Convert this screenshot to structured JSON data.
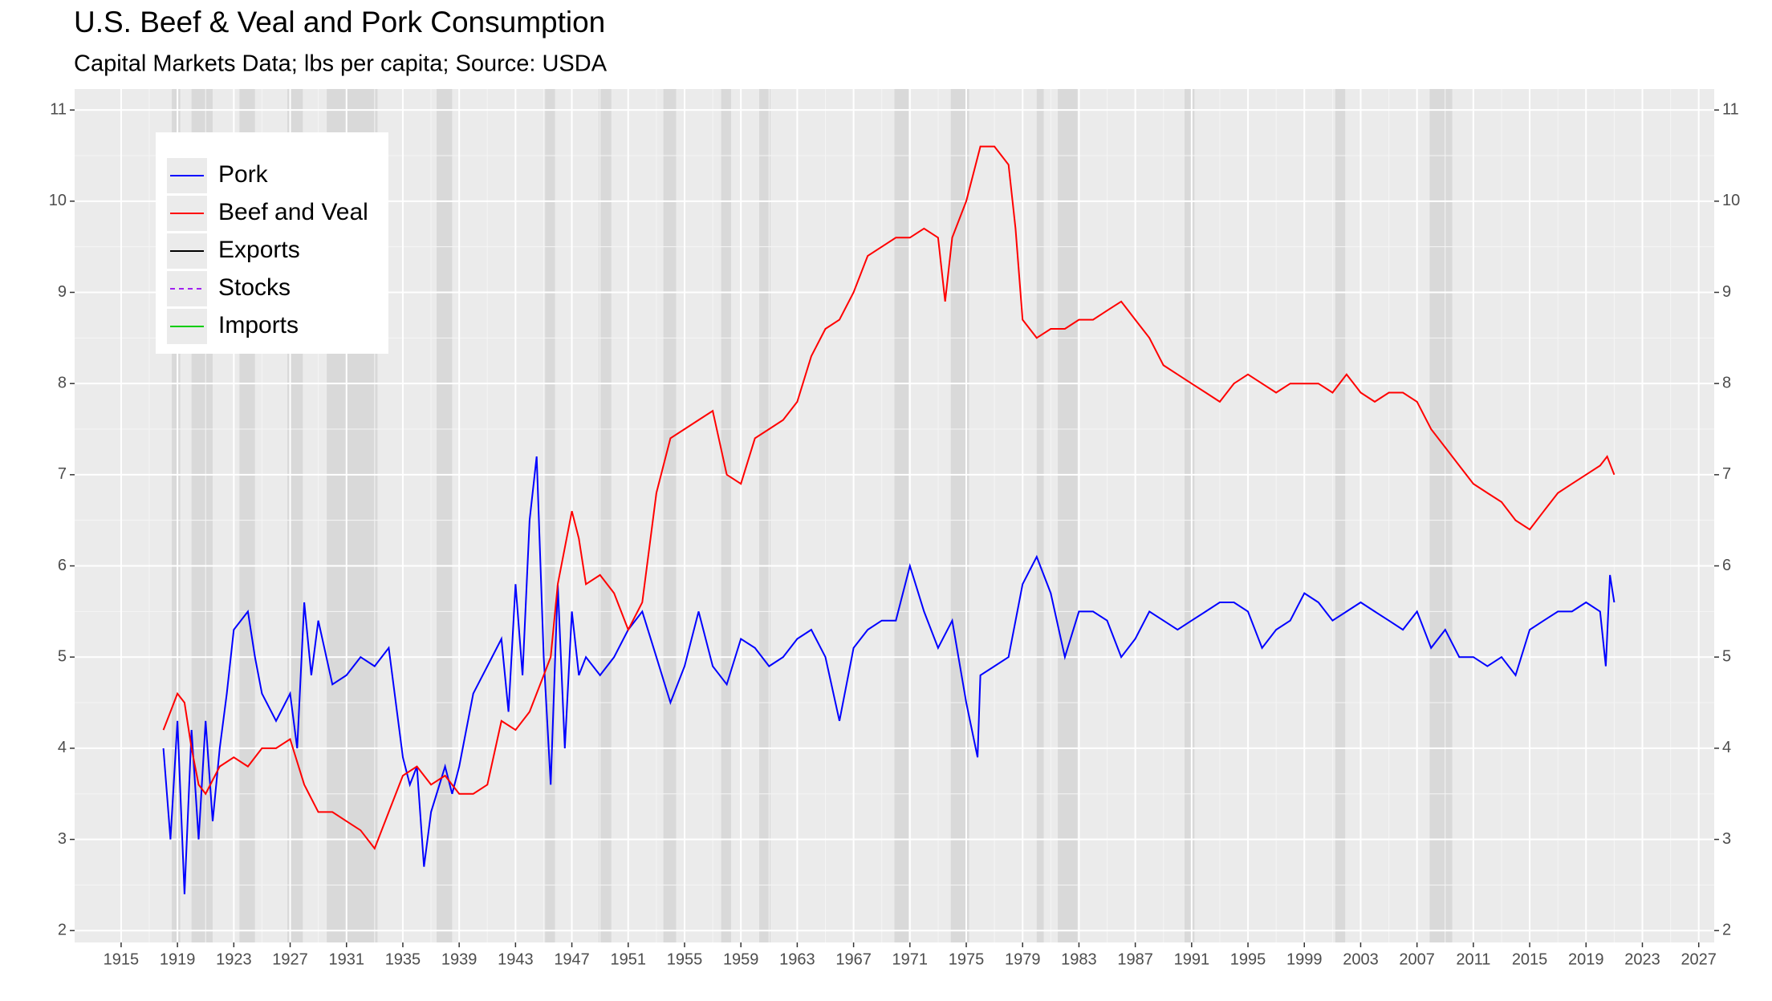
{
  "chart_data": {
    "type": "line",
    "title": "U.S. Beef & Veal and Pork Consumption",
    "subtitle": "Capital Markets Data; lbs per capita; Source: USDA",
    "xlim": [
      1911.7,
      2028.1
    ],
    "xticks": [
      1915,
      1919,
      1923,
      1927,
      1931,
      1935,
      1939,
      1943,
      1947,
      1951,
      1955,
      1959,
      1963,
      1967,
      1971,
      1975,
      1979,
      1983,
      1987,
      1991,
      1995,
      1999,
      2003,
      2007,
      2011,
      2015,
      2019,
      2023,
      2027
    ],
    "ylim": [
      1.87,
      11.23
    ],
    "yticks": [
      2,
      3,
      4,
      5,
      6,
      7,
      8,
      9,
      10,
      11
    ],
    "grid": true,
    "legend": "top-left",
    "recessions": [
      [
        1918.6,
        1919.2
      ],
      [
        1920.0,
        1921.5
      ],
      [
        1923.4,
        1924.5
      ],
      [
        1926.8,
        1927.9
      ],
      [
        1929.6,
        1933.2
      ],
      [
        1937.4,
        1938.5
      ],
      [
        1945.1,
        1945.8
      ],
      [
        1948.9,
        1949.8
      ],
      [
        1953.5,
        1954.4
      ],
      [
        1957.6,
        1958.3
      ],
      [
        1960.3,
        1961.1
      ],
      [
        1969.9,
        1970.9
      ],
      [
        1973.9,
        1975.2
      ],
      [
        1980.0,
        1980.5
      ],
      [
        1981.5,
        1982.9
      ],
      [
        1990.5,
        1991.2
      ],
      [
        2001.2,
        2001.9
      ],
      [
        2007.9,
        2009.5
      ]
    ],
    "series": [
      {
        "name": "Pork",
        "color": "#0000ff",
        "dash": "solid",
        "x": [
          1918,
          1918.5,
          1919,
          1919.5,
          1920,
          1920.5,
          1921,
          1921.5,
          1922,
          1922.5,
          1923,
          1924,
          1924.5,
          1925,
          1926,
          1927,
          1927.5,
          1928,
          1928.5,
          1929,
          1930,
          1931,
          1932,
          1933,
          1934,
          1935,
          1935.5,
          1936,
          1936.5,
          1937,
          1938,
          1938.5,
          1939,
          1940,
          1941,
          1942,
          1942.5,
          1943,
          1943.5,
          1944,
          1944.5,
          1945,
          1945.5,
          1946,
          1946.5,
          1947,
          1947.5,
          1948,
          1949,
          1950,
          1951,
          1952,
          1953,
          1954,
          1955,
          1956,
          1957,
          1958,
          1959,
          1960,
          1961,
          1962,
          1963,
          1964,
          1965,
          1966,
          1967,
          1968,
          1969,
          1970,
          1971,
          1972,
          1973,
          1974,
          1975,
          1975.8,
          1976,
          1977,
          1978,
          1979,
          1980,
          1981,
          1982,
          1983,
          1984,
          1985,
          1986,
          1987,
          1988,
          1989,
          1990,
          1991,
          1992,
          1993,
          1994,
          1995,
          1996,
          1997,
          1998,
          1999,
          2000,
          2001,
          2002,
          2003,
          2004,
          2005,
          2006,
          2007,
          2008,
          2009,
          2010,
          2011,
          2012,
          2013,
          2014,
          2015,
          2016,
          2017,
          2018,
          2019,
          2020,
          2020.4,
          2020.7,
          2021
        ],
        "values": [
          4.0,
          3.0,
          4.3,
          2.4,
          4.2,
          3.0,
          4.3,
          3.2,
          4.0,
          4.6,
          5.3,
          5.5,
          5.0,
          4.6,
          4.3,
          4.6,
          4.0,
          5.6,
          4.8,
          5.4,
          4.7,
          4.8,
          5.0,
          4.9,
          5.1,
          3.9,
          3.6,
          3.8,
          2.7,
          3.3,
          3.8,
          3.5,
          3.8,
          4.6,
          4.9,
          5.2,
          4.4,
          5.8,
          4.8,
          6.5,
          7.2,
          5.0,
          3.6,
          5.8,
          4.0,
          5.5,
          4.8,
          5.0,
          4.8,
          5.0,
          5.3,
          5.5,
          5.0,
          4.5,
          4.9,
          5.5,
          4.9,
          4.7,
          5.2,
          5.1,
          4.9,
          5.0,
          5.2,
          5.3,
          5.0,
          4.3,
          5.1,
          5.3,
          5.4,
          5.4,
          6.0,
          5.5,
          5.1,
          5.4,
          4.5,
          3.9,
          4.8,
          4.9,
          5.0,
          5.8,
          6.1,
          5.7,
          5.0,
          5.5,
          5.5,
          5.4,
          5.0,
          5.2,
          5.5,
          5.4,
          5.3,
          5.4,
          5.5,
          5.6,
          5.6,
          5.5,
          5.1,
          5.3,
          5.4,
          5.7,
          5.6,
          5.4,
          5.5,
          5.6,
          5.5,
          5.4,
          5.3,
          5.5,
          5.1,
          5.3,
          5.0,
          5.0,
          4.9,
          5.0,
          4.8,
          5.3,
          5.4,
          5.5,
          5.5,
          5.6,
          5.5,
          4.9,
          5.9,
          5.6
        ]
      },
      {
        "name": "Beef and Veal",
        "color": "#ff0000",
        "dash": "solid",
        "x": [
          1918,
          1918.5,
          1919,
          1919.5,
          1920,
          1920.5,
          1921,
          1922,
          1923,
          1924,
          1925,
          1926,
          1927,
          1928,
          1929,
          1930,
          1931,
          1932,
          1933,
          1934,
          1935,
          1936,
          1937,
          1938,
          1939,
          1940,
          1941,
          1942,
          1943,
          1944,
          1945,
          1945.5,
          1946,
          1947,
          1947.5,
          1948,
          1949,
          1950,
          1951,
          1952,
          1953,
          1954,
          1955,
          1956,
          1957,
          1958,
          1959,
          1960,
          1961,
          1962,
          1963,
          1964,
          1965,
          1966,
          1967,
          1968,
          1969,
          1970,
          1971,
          1972,
          1973,
          1973.5,
          1974,
          1975,
          1976,
          1977,
          1978,
          1978.5,
          1979,
          1980,
          1981,
          1982,
          1983,
          1984,
          1985,
          1986,
          1987,
          1988,
          1989,
          1990,
          1991,
          1992,
          1993,
          1994,
          1995,
          1996,
          1997,
          1998,
          1999,
          2000,
          2001,
          2002,
          2003,
          2004,
          2005,
          2006,
          2007,
          2008,
          2009,
          2010,
          2011,
          2012,
          2013,
          2014,
          2015,
          2016,
          2017,
          2018,
          2019,
          2020,
          2020.5,
          2021
        ],
        "values": [
          4.2,
          4.4,
          4.6,
          4.5,
          4.0,
          3.6,
          3.5,
          3.8,
          3.9,
          3.8,
          4.0,
          4.0,
          4.1,
          3.6,
          3.3,
          3.3,
          3.2,
          3.1,
          2.9,
          3.3,
          3.7,
          3.8,
          3.6,
          3.7,
          3.5,
          3.5,
          3.6,
          4.3,
          4.2,
          4.4,
          4.8,
          5.0,
          5.8,
          6.6,
          6.3,
          5.8,
          5.9,
          5.7,
          5.3,
          5.6,
          6.8,
          7.4,
          7.5,
          7.6,
          7.7,
          7.0,
          6.9,
          7.4,
          7.5,
          7.6,
          7.8,
          8.3,
          8.6,
          8.7,
          9.0,
          9.4,
          9.5,
          9.6,
          9.6,
          9.7,
          9.6,
          8.9,
          9.6,
          10.0,
          10.6,
          10.6,
          10.4,
          9.7,
          8.7,
          8.5,
          8.6,
          8.6,
          8.7,
          8.7,
          8.8,
          8.9,
          8.7,
          8.5,
          8.2,
          8.1,
          8.0,
          7.9,
          7.8,
          8.0,
          8.1,
          8.0,
          7.9,
          8.0,
          8.0,
          8.0,
          7.9,
          8.1,
          7.9,
          7.8,
          7.9,
          7.9,
          7.8,
          7.5,
          7.3,
          7.1,
          6.9,
          6.8,
          6.7,
          6.5,
          6.4,
          6.6,
          6.8,
          6.9,
          7.0,
          7.1,
          7.2,
          7.0
        ]
      },
      {
        "name": "Exports",
        "color": "#000000",
        "dash": "solid",
        "x": [],
        "values": []
      },
      {
        "name": "Stocks",
        "color": "#a020f0",
        "dash": "dashed",
        "x": [],
        "values": []
      },
      {
        "name": "Imports",
        "color": "#00cd00",
        "dash": "solid",
        "x": [],
        "values": []
      }
    ]
  }
}
